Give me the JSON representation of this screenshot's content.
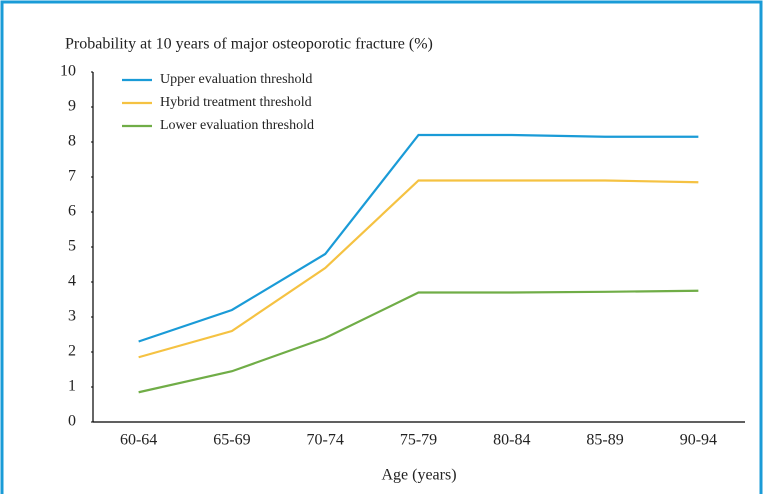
{
  "chart_data": {
    "type": "line",
    "title": "Probability at 10 years of major osteoporotic fracture (%)",
    "x_label": "Age (years)",
    "categories": [
      "60-64",
      "65-69",
      "70-74",
      "75-79",
      "80-84",
      "85-89",
      "90-94"
    ],
    "series": [
      {
        "name": "Upper evaluation threshold",
        "color": "#1a9bd7",
        "values": [
          2.3,
          3.2,
          4.8,
          8.2,
          8.2,
          8.15,
          8.15
        ]
      },
      {
        "name": "Hybrid treatment threshold",
        "color": "#f5c242",
        "values": [
          1.85,
          2.6,
          4.4,
          6.9,
          6.9,
          6.9,
          6.85
        ]
      },
      {
        "name": "Lower evaluation threshold",
        "color": "#70ad47",
        "values": [
          0.85,
          1.45,
          2.4,
          3.7,
          3.7,
          3.72,
          3.75
        ]
      }
    ],
    "ylim": [
      0,
      10
    ],
    "yticks": [
      0,
      1,
      2,
      3,
      4,
      5,
      6,
      7,
      8,
      9,
      10
    ],
    "legend": "upper left"
  }
}
